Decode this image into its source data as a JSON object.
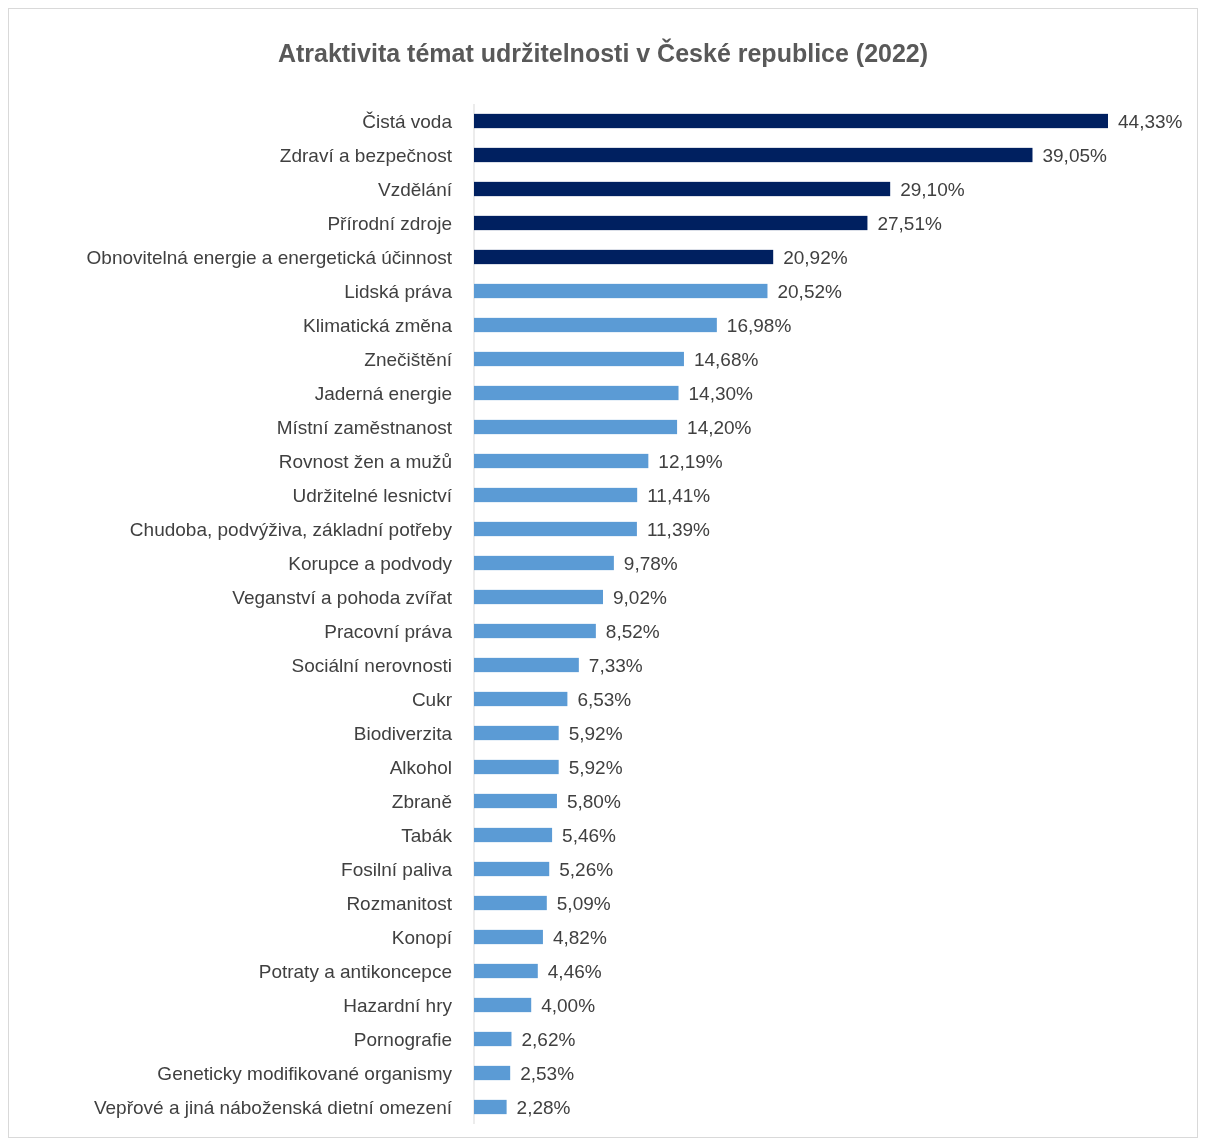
{
  "chart_data": {
    "type": "bar",
    "orientation": "horizontal",
    "title": "Atraktivita témat udržitelnosti v České republice (2022)",
    "categories": [
      "Čistá voda",
      "Zdraví a bezpečnost",
      "Vzdělání",
      "Přírodní zdroje",
      "Obnovitelná energie a energetická účinnost",
      "Lidská práva",
      "Klimatická změna",
      "Znečištění",
      "Jaderná energie",
      "Místní zaměstnanost",
      "Rovnost žen a mužů",
      "Udržitelné lesnictví",
      "Chudoba, podvýživa, základní potřeby",
      "Korupce a podvody",
      "Veganství a pohoda zvířat",
      "Pracovní práva",
      "Sociální nerovnosti",
      "Cukr",
      "Biodiverzita",
      "Alkohol",
      "Zbraně",
      "Tabák",
      "Fosilní paliva",
      "Rozmanitost",
      "Konopí",
      "Potraty a antikoncepce",
      "Hazardní hry",
      "Pornografie",
      "Geneticky modifikované organismy",
      "Vepřové a jiná náboženská dietní omezení"
    ],
    "values": [
      44.33,
      39.05,
      29.1,
      27.51,
      20.92,
      20.52,
      16.98,
      14.68,
      14.3,
      14.2,
      12.19,
      11.41,
      11.39,
      9.78,
      9.02,
      8.52,
      7.33,
      6.53,
      5.92,
      5.92,
      5.8,
      5.46,
      5.26,
      5.09,
      4.82,
      4.46,
      4.0,
      2.62,
      2.53,
      2.28
    ],
    "value_labels": [
      "44,33%",
      "39,05%",
      "29,10%",
      "27,51%",
      "20,92%",
      "20,52%",
      "16,98%",
      "14,68%",
      "14,30%",
      "14,20%",
      "12,19%",
      "11,41%",
      "11,39%",
      "9,78%",
      "9,02%",
      "8,52%",
      "7,33%",
      "6,53%",
      "5,92%",
      "5,92%",
      "5,80%",
      "5,46%",
      "5,26%",
      "5,09%",
      "4,82%",
      "4,46%",
      "4,00%",
      "2,62%",
      "2,53%",
      "2,28%"
    ],
    "colors": [
      "#002060",
      "#002060",
      "#002060",
      "#002060",
      "#002060",
      "#5b9bd5",
      "#5b9bd5",
      "#5b9bd5",
      "#5b9bd5",
      "#5b9bd5",
      "#5b9bd5",
      "#5b9bd5",
      "#5b9bd5",
      "#5b9bd5",
      "#5b9bd5",
      "#5b9bd5",
      "#5b9bd5",
      "#5b9bd5",
      "#5b9bd5",
      "#5b9bd5",
      "#5b9bd5",
      "#5b9bd5",
      "#5b9bd5",
      "#5b9bd5",
      "#5b9bd5",
      "#5b9bd5",
      "#5b9bd5",
      "#5b9bd5",
      "#5b9bd5",
      "#5b9bd5"
    ]
  }
}
